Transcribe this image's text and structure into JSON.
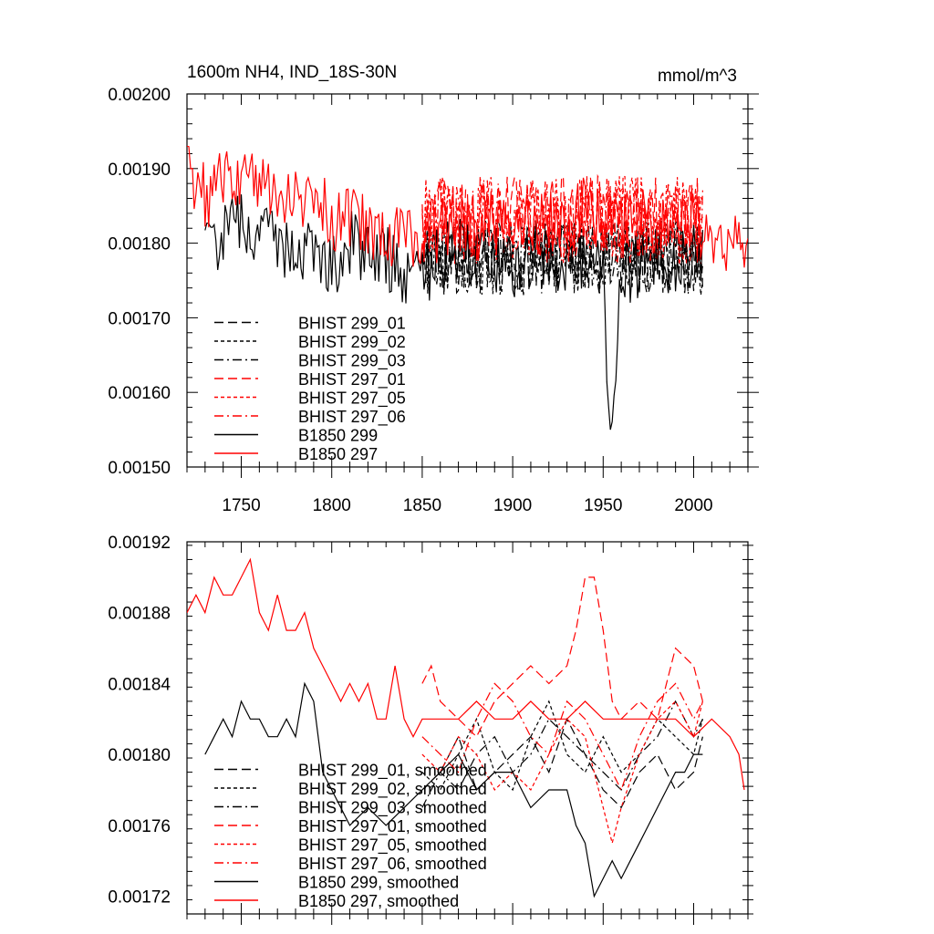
{
  "colors": {
    "black_series": "#000000",
    "red_series": "#ff0000"
  },
  "chart_data": [
    {
      "type": "line",
      "title": "1600m NH4, IND_18S-30N",
      "units": "mmol/m^3",
      "xlim": [
        1720,
        2030
      ],
      "ylim": [
        0.0015,
        0.002
      ],
      "x_ticks": [
        1750,
        1800,
        1850,
        1900,
        1950,
        2000
      ],
      "x_tick_labels": [
        "1750",
        "1800",
        "1850",
        "1900",
        "1950",
        "2000"
      ],
      "y_ticks": [
        0.0015,
        0.0016,
        0.0017,
        0.0018,
        0.0019,
        0.002
      ],
      "y_tick_labels": [
        "0.00150",
        "0.00160",
        "0.00170",
        "0.00180",
        "0.00190",
        "0.00200"
      ],
      "legend_placement": "lower-left",
      "series": [
        {
          "name": "BHIST 299_01",
          "color": "#000000",
          "dash": "long-dash",
          "x_range": [
            1850,
            2005
          ],
          "mean": 0.00178,
          "amplitude": 5e-05
        },
        {
          "name": "BHIST 299_02",
          "color": "#000000",
          "dash": "short-dash",
          "x_range": [
            1850,
            2005
          ],
          "mean": 0.00178,
          "amplitude": 5e-05
        },
        {
          "name": "BHIST 299_03",
          "color": "#000000",
          "dash": "dash-dot",
          "x_range": [
            1850,
            2005
          ],
          "mean": 0.00178,
          "amplitude": 5e-05
        },
        {
          "name": "BHIST 297_01",
          "color": "#ff0000",
          "dash": "long-dash",
          "x_range": [
            1850,
            2005
          ],
          "mean": 0.00183,
          "amplitude": 6e-05
        },
        {
          "name": "BHIST 297_05",
          "color": "#ff0000",
          "dash": "short-dash",
          "x_range": [
            1850,
            2005
          ],
          "mean": 0.00183,
          "amplitude": 6e-05
        },
        {
          "name": "BHIST 297_06",
          "color": "#ff0000",
          "dash": "dash-dot",
          "x_range": [
            1850,
            2005
          ],
          "mean": 0.00183,
          "amplitude": 6e-05
        },
        {
          "name": "B1850 299",
          "color": "#000000",
          "dash": "solid",
          "x": [
            1730,
            1740,
            1750,
            1760,
            1770,
            1780,
            1790,
            1800,
            1810,
            1820,
            1830,
            1840,
            1850,
            1860,
            1870,
            1880,
            1890,
            1900,
            1910,
            1920,
            1930,
            1940,
            1950,
            1954,
            1960,
            1970,
            1980,
            1990,
            2000,
            2005
          ],
          "y": [
            0.00179,
            0.00181,
            0.00183,
            0.00181,
            0.0018,
            0.00179,
            0.0018,
            0.00177,
            0.0018,
            0.00179,
            0.00178,
            0.00175,
            0.00176,
            0.00178,
            0.00179,
            0.00177,
            0.00178,
            0.00176,
            0.00179,
            0.00178,
            0.00177,
            0.00178,
            0.00175,
            0.00155,
            0.00176,
            0.00177,
            0.00178,
            0.00177,
            0.00178,
            0.00179
          ]
        },
        {
          "name": "B1850 297",
          "color": "#ff0000",
          "dash": "solid",
          "x": [
            1720,
            1730,
            1740,
            1750,
            1760,
            1770,
            1780,
            1790,
            1800,
            1810,
            1820,
            1830,
            1840,
            1850,
            1860,
            1870,
            1880,
            1890,
            1900,
            1910,
            1920,
            1930,
            1940,
            1950,
            1960,
            1970,
            1980,
            1990,
            2000,
            2010,
            2020,
            2030
          ],
          "y": [
            0.0019,
            0.00186,
            0.00189,
            0.00188,
            0.00189,
            0.00187,
            0.00186,
            0.00187,
            0.00183,
            0.00184,
            0.00182,
            0.00181,
            0.0018,
            0.00181,
            0.00182,
            0.00183,
            0.00182,
            0.00183,
            0.00183,
            0.00182,
            0.00184,
            0.00182,
            0.00185,
            0.00183,
            0.00182,
            0.00183,
            0.00182,
            0.00183,
            0.00183,
            0.00182,
            0.0018,
            0.00181
          ]
        }
      ]
    },
    {
      "type": "line",
      "xlim": [
        1720,
        2030
      ],
      "ylim": [
        0.00171,
        0.00192
      ],
      "x_ticks": [
        1750,
        1800,
        1850,
        1900,
        1950,
        2000
      ],
      "y_ticks": [
        0.00172,
        0.00176,
        0.0018,
        0.00184,
        0.00188,
        0.00192
      ],
      "y_tick_labels": [
        "0.00172",
        "0.00176",
        "0.00180",
        "0.00184",
        "0.00188",
        "0.00192"
      ],
      "legend_placement": "lower-left",
      "series": [
        {
          "name": "BHIST 299_01, smoothed",
          "color": "#000000",
          "dash": "long-dash",
          "x": [
            1850,
            1860,
            1870,
            1880,
            1890,
            1900,
            1910,
            1920,
            1930,
            1940,
            1950,
            1960,
            1970,
            1980,
            1990,
            2000,
            2005
          ],
          "y": [
            0.00178,
            0.00179,
            0.00181,
            0.00178,
            0.00179,
            0.0018,
            0.00181,
            0.00179,
            0.00182,
            0.0018,
            0.00178,
            0.00177,
            0.00179,
            0.0018,
            0.00178,
            0.00179,
            0.00181
          ]
        },
        {
          "name": "BHIST 299_02, smoothed",
          "color": "#000000",
          "dash": "short-dash",
          "x": [
            1850,
            1860,
            1870,
            1880,
            1890,
            1900,
            1910,
            1920,
            1930,
            1940,
            1950,
            1960,
            1970,
            1980,
            1990,
            2000,
            2005
          ],
          "y": [
            0.00179,
            0.00178,
            0.0018,
            0.00182,
            0.00179,
            0.00178,
            0.00181,
            0.00183,
            0.0018,
            0.00179,
            0.00181,
            0.00179,
            0.0018,
            0.00182,
            0.00181,
            0.0018,
            0.00182
          ]
        },
        {
          "name": "BHIST 299_03, smoothed",
          "color": "#000000",
          "dash": "dash-dot",
          "x": [
            1850,
            1860,
            1870,
            1880,
            1890,
            1900,
            1910,
            1920,
            1930,
            1940,
            1950,
            1960,
            1970,
            1980,
            1990,
            2000,
            2005
          ],
          "y": [
            0.00177,
            0.00179,
            0.00178,
            0.0018,
            0.00181,
            0.00179,
            0.0018,
            0.00182,
            0.00181,
            0.0018,
            0.00179,
            0.00178,
            0.0018,
            0.00181,
            0.00183,
            0.00181,
            0.00182
          ]
        },
        {
          "name": "BHIST 297_01, smoothed",
          "color": "#ff0000",
          "dash": "long-dash",
          "x": [
            1850,
            1855,
            1860,
            1870,
            1880,
            1890,
            1900,
            1910,
            1920,
            1930,
            1935,
            1940,
            1945,
            1950,
            1955,
            1960,
            1970,
            1980,
            1990,
            2000,
            2005
          ],
          "y": [
            0.00184,
            0.00185,
            0.00183,
            0.00182,
            0.00181,
            0.00183,
            0.00184,
            0.00185,
            0.00184,
            0.00185,
            0.00187,
            0.0019,
            0.0019,
            0.00187,
            0.00183,
            0.00182,
            0.00183,
            0.00182,
            0.00186,
            0.00185,
            0.00183
          ]
        },
        {
          "name": "BHIST 297_05, smoothed",
          "color": "#ff0000",
          "dash": "short-dash",
          "x": [
            1850,
            1860,
            1870,
            1880,
            1890,
            1900,
            1910,
            1920,
            1930,
            1940,
            1950,
            1955,
            1960,
            1970,
            1980,
            1990,
            2000,
            2005
          ],
          "y": [
            0.0018,
            0.00179,
            0.00181,
            0.0018,
            0.00178,
            0.00179,
            0.00178,
            0.0018,
            0.00182,
            0.00181,
            0.00177,
            0.00175,
            0.00177,
            0.0018,
            0.00182,
            0.00183,
            0.00181,
            0.00183
          ]
        },
        {
          "name": "BHIST 297_06, smoothed",
          "color": "#ff0000",
          "dash": "dash-dot",
          "x": [
            1850,
            1860,
            1870,
            1880,
            1890,
            1900,
            1910,
            1920,
            1930,
            1940,
            1950,
            1960,
            1970,
            1980,
            1990,
            2000,
            2005
          ],
          "y": [
            0.00181,
            0.0018,
            0.00179,
            0.00182,
            0.00184,
            0.00183,
            0.00181,
            0.0018,
            0.00183,
            0.00182,
            0.0018,
            0.00178,
            0.00181,
            0.00183,
            0.00184,
            0.00182,
            0.00183
          ]
        },
        {
          "name": "B1850 299, smoothed",
          "color": "#000000",
          "dash": "solid",
          "x": [
            1730,
            1735,
            1740,
            1745,
            1750,
            1755,
            1760,
            1765,
            1770,
            1775,
            1780,
            1785,
            1790,
            1795,
            1800,
            1805,
            1810,
            1820,
            1830,
            1840,
            1850,
            1860,
            1870,
            1880,
            1890,
            1900,
            1910,
            1920,
            1930,
            1935,
            1940,
            1945,
            1950,
            1955,
            1960,
            1965,
            1970,
            1975,
            1980,
            1985,
            1990,
            1995,
            2000,
            2005
          ],
          "y": [
            0.0018,
            0.00181,
            0.00182,
            0.00181,
            0.00183,
            0.00182,
            0.00182,
            0.00181,
            0.00181,
            0.00182,
            0.00181,
            0.00184,
            0.00183,
            0.00179,
            0.00178,
            0.00177,
            0.00176,
            0.00177,
            0.00176,
            0.00177,
            0.00178,
            0.00179,
            0.0018,
            0.00178,
            0.00179,
            0.00179,
            0.00177,
            0.00178,
            0.00178,
            0.00176,
            0.00175,
            0.00172,
            0.00173,
            0.00174,
            0.00173,
            0.00174,
            0.00175,
            0.00176,
            0.00177,
            0.00178,
            0.00179,
            0.00179,
            0.0018,
            0.0018
          ]
        },
        {
          "name": "B1850 297, smoothed",
          "color": "#ff0000",
          "dash": "solid",
          "x": [
            1720,
            1725,
            1730,
            1735,
            1740,
            1745,
            1750,
            1755,
            1760,
            1765,
            1770,
            1775,
            1780,
            1785,
            1790,
            1795,
            1800,
            1805,
            1810,
            1815,
            1820,
            1825,
            1830,
            1835,
            1840,
            1845,
            1850,
            1860,
            1870,
            1880,
            1890,
            1900,
            1910,
            1920,
            1930,
            1940,
            1950,
            1960,
            1970,
            1980,
            1990,
            2000,
            2010,
            2020,
            2025,
            2028
          ],
          "y": [
            0.00188,
            0.00189,
            0.00188,
            0.0019,
            0.00189,
            0.00189,
            0.0019,
            0.00191,
            0.00188,
            0.00187,
            0.00189,
            0.00187,
            0.00187,
            0.00188,
            0.00186,
            0.00185,
            0.00184,
            0.00183,
            0.00184,
            0.00183,
            0.00184,
            0.00182,
            0.00182,
            0.00185,
            0.00182,
            0.00181,
            0.00182,
            0.00182,
            0.00182,
            0.00183,
            0.00182,
            0.00182,
            0.00183,
            0.00182,
            0.00182,
            0.00183,
            0.00182,
            0.00182,
            0.00182,
            0.00182,
            0.00182,
            0.00181,
            0.00182,
            0.00181,
            0.0018,
            0.00178
          ]
        }
      ]
    }
  ]
}
